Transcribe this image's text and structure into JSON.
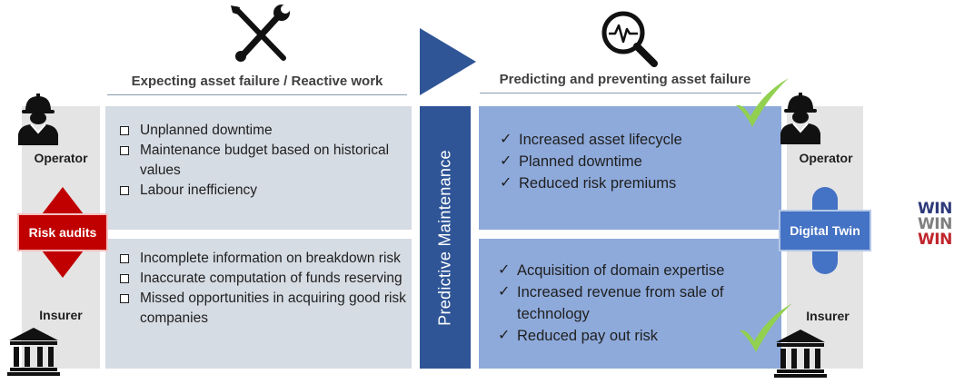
{
  "left": {
    "heading": "Expecting asset failure / Reactive work",
    "top_items": [
      "Unplanned downtime",
      "Maintenance budget based on historical values",
      "Labour inefficiency"
    ],
    "bottom_items": [
      "Incomplete information on breakdown risk",
      "Inaccurate computation of funds reserving",
      "Missed opportunities in acquiring good risk companies"
    ],
    "operator_label": "Operator",
    "insurer_label": "Insurer",
    "badge": "Risk audits"
  },
  "center": {
    "label": "Predictive Maintenance"
  },
  "right": {
    "heading": "Predicting and preventing asset failure",
    "top_items": [
      "Increased asset lifecycle",
      "Planned downtime",
      "Reduced risk premiums"
    ],
    "bottom_items": [
      "Acquisition of domain expertise",
      "Increased revenue from sale of technology",
      "Reduced pay out risk"
    ],
    "operator_label": "Operator",
    "insurer_label": "Insurer",
    "badge": "Digital Twin"
  },
  "win": {
    "lines": [
      "WIN",
      "WIN",
      "WIN"
    ],
    "colors": [
      "#2e3a7a",
      "#7f7f7f",
      "#c0262d"
    ]
  },
  "colors": {
    "panel_gray": "#d6dce4",
    "panel_blue": "#8eaadb",
    "bar_blue": "#2f5597",
    "badge_red": "#c00000",
    "badge_blue": "#4472c4",
    "check_green": "#92d050"
  }
}
